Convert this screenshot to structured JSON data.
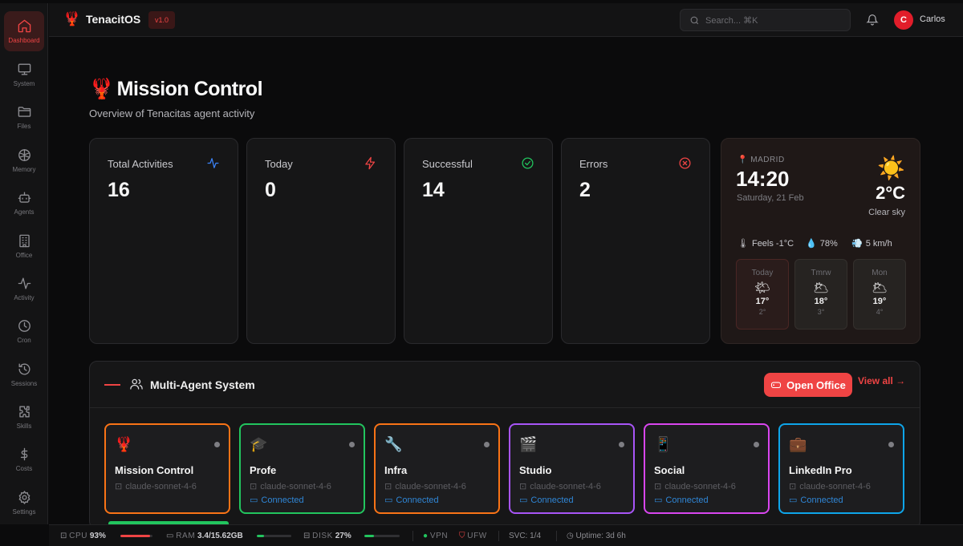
{
  "sidebar": {
    "items": [
      {
        "label": "Dashboard",
        "icon": "home-icon"
      },
      {
        "label": "System",
        "icon": "monitor-icon"
      },
      {
        "label": "Files",
        "icon": "folder-icon"
      },
      {
        "label": "Memory",
        "icon": "brain-icon"
      },
      {
        "label": "Agents",
        "icon": "bot-icon"
      },
      {
        "label": "Office",
        "icon": "building-icon"
      },
      {
        "label": "Activity",
        "icon": "pulse-icon"
      },
      {
        "label": "Cron",
        "icon": "clock-icon"
      },
      {
        "label": "Sessions",
        "icon": "history-icon"
      },
      {
        "label": "Skills",
        "icon": "puzzle-icon"
      },
      {
        "label": "Costs",
        "icon": "dollar-icon"
      },
      {
        "label": "Settings",
        "icon": "gear-icon"
      }
    ]
  },
  "header": {
    "brand_icon": "🦞",
    "brand": "TenacitOS",
    "version": "v1.0",
    "search_placeholder": "Search... ⌘K",
    "avatar_initial": "C",
    "user": "Carlos"
  },
  "page": {
    "emoji": "🦞",
    "title": "Mission Control",
    "subtitle": "Overview of Tenacitas agent activity"
  },
  "stats": [
    {
      "label": "Total Activities",
      "value": "16",
      "icon": "pulse-icon",
      "color": "#3b82f6"
    },
    {
      "label": "Today",
      "value": "0",
      "icon": "bolt-icon",
      "color": "#ef4444"
    },
    {
      "label": "Successful",
      "value": "14",
      "icon": "check-circle-icon",
      "color": "#22c55e"
    },
    {
      "label": "Errors",
      "value": "2",
      "icon": "x-circle-icon",
      "color": "#ef4444"
    }
  ],
  "weather": {
    "pin": "📍",
    "city": "MADRID",
    "time": "14:20",
    "date": "Saturday, 21 Feb",
    "sun_icon": "☀️",
    "temp": "2°C",
    "condition": "Clear sky",
    "feels_icon": "🌡",
    "feels": "Feels -1°C",
    "humidity_icon": "💧",
    "humidity": "78%",
    "wind_icon": "💨",
    "wind": "5 km/h",
    "forecast": [
      {
        "day": "Today",
        "icon": "🌤",
        "high": "17°",
        "low": "2°"
      },
      {
        "day": "Tmrw",
        "icon": "🌥",
        "high": "18°",
        "low": "3°"
      },
      {
        "day": "Mon",
        "icon": "🌥",
        "high": "19°",
        "low": "4°"
      }
    ]
  },
  "agents_panel": {
    "title": "Multi-Agent System",
    "open_office": "Open Office",
    "view_all": "View all →",
    "agents": [
      {
        "name": "Mission Control",
        "emoji": "🦞",
        "model": "claude-sonnet-4-6",
        "status": "",
        "color": "#f97316"
      },
      {
        "name": "Profe",
        "emoji": "🎓",
        "model": "claude-sonnet-4-6",
        "status": "Connected",
        "color": "#22c55e"
      },
      {
        "name": "Infra",
        "emoji": "🔧",
        "model": "claude-sonnet-4-6",
        "status": "Connected",
        "color": "#f97316"
      },
      {
        "name": "Studio",
        "emoji": "🎬",
        "model": "claude-sonnet-4-6",
        "status": "Connected",
        "color": "#a855f7"
      },
      {
        "name": "Social",
        "emoji": "📱",
        "model": "claude-sonnet-4-6",
        "status": "Connected",
        "color": "#d946ef"
      },
      {
        "name": "LinkedIn Pro",
        "emoji": "💼",
        "model": "claude-sonnet-4-6",
        "status": "Connected",
        "color": "#0ea5e9"
      }
    ]
  },
  "statusbar": {
    "cpu_label": "CPU",
    "cpu_value": "93%",
    "cpu_fraction": 0.93,
    "cpu_color": "#ef4444",
    "ram_label": "RAM",
    "ram_value": "3.4/15.62GB",
    "ram_fraction": 0.22,
    "ram_color": "#22c55e",
    "disk_label": "DISK",
    "disk_value": "27%",
    "disk_fraction": 0.27,
    "disk_color": "#22c55e",
    "vpn_label": "VPN",
    "ufw_label": "UFW",
    "svc": "SVC: 1/4",
    "uptime": "Uptime: 3d 6h"
  }
}
